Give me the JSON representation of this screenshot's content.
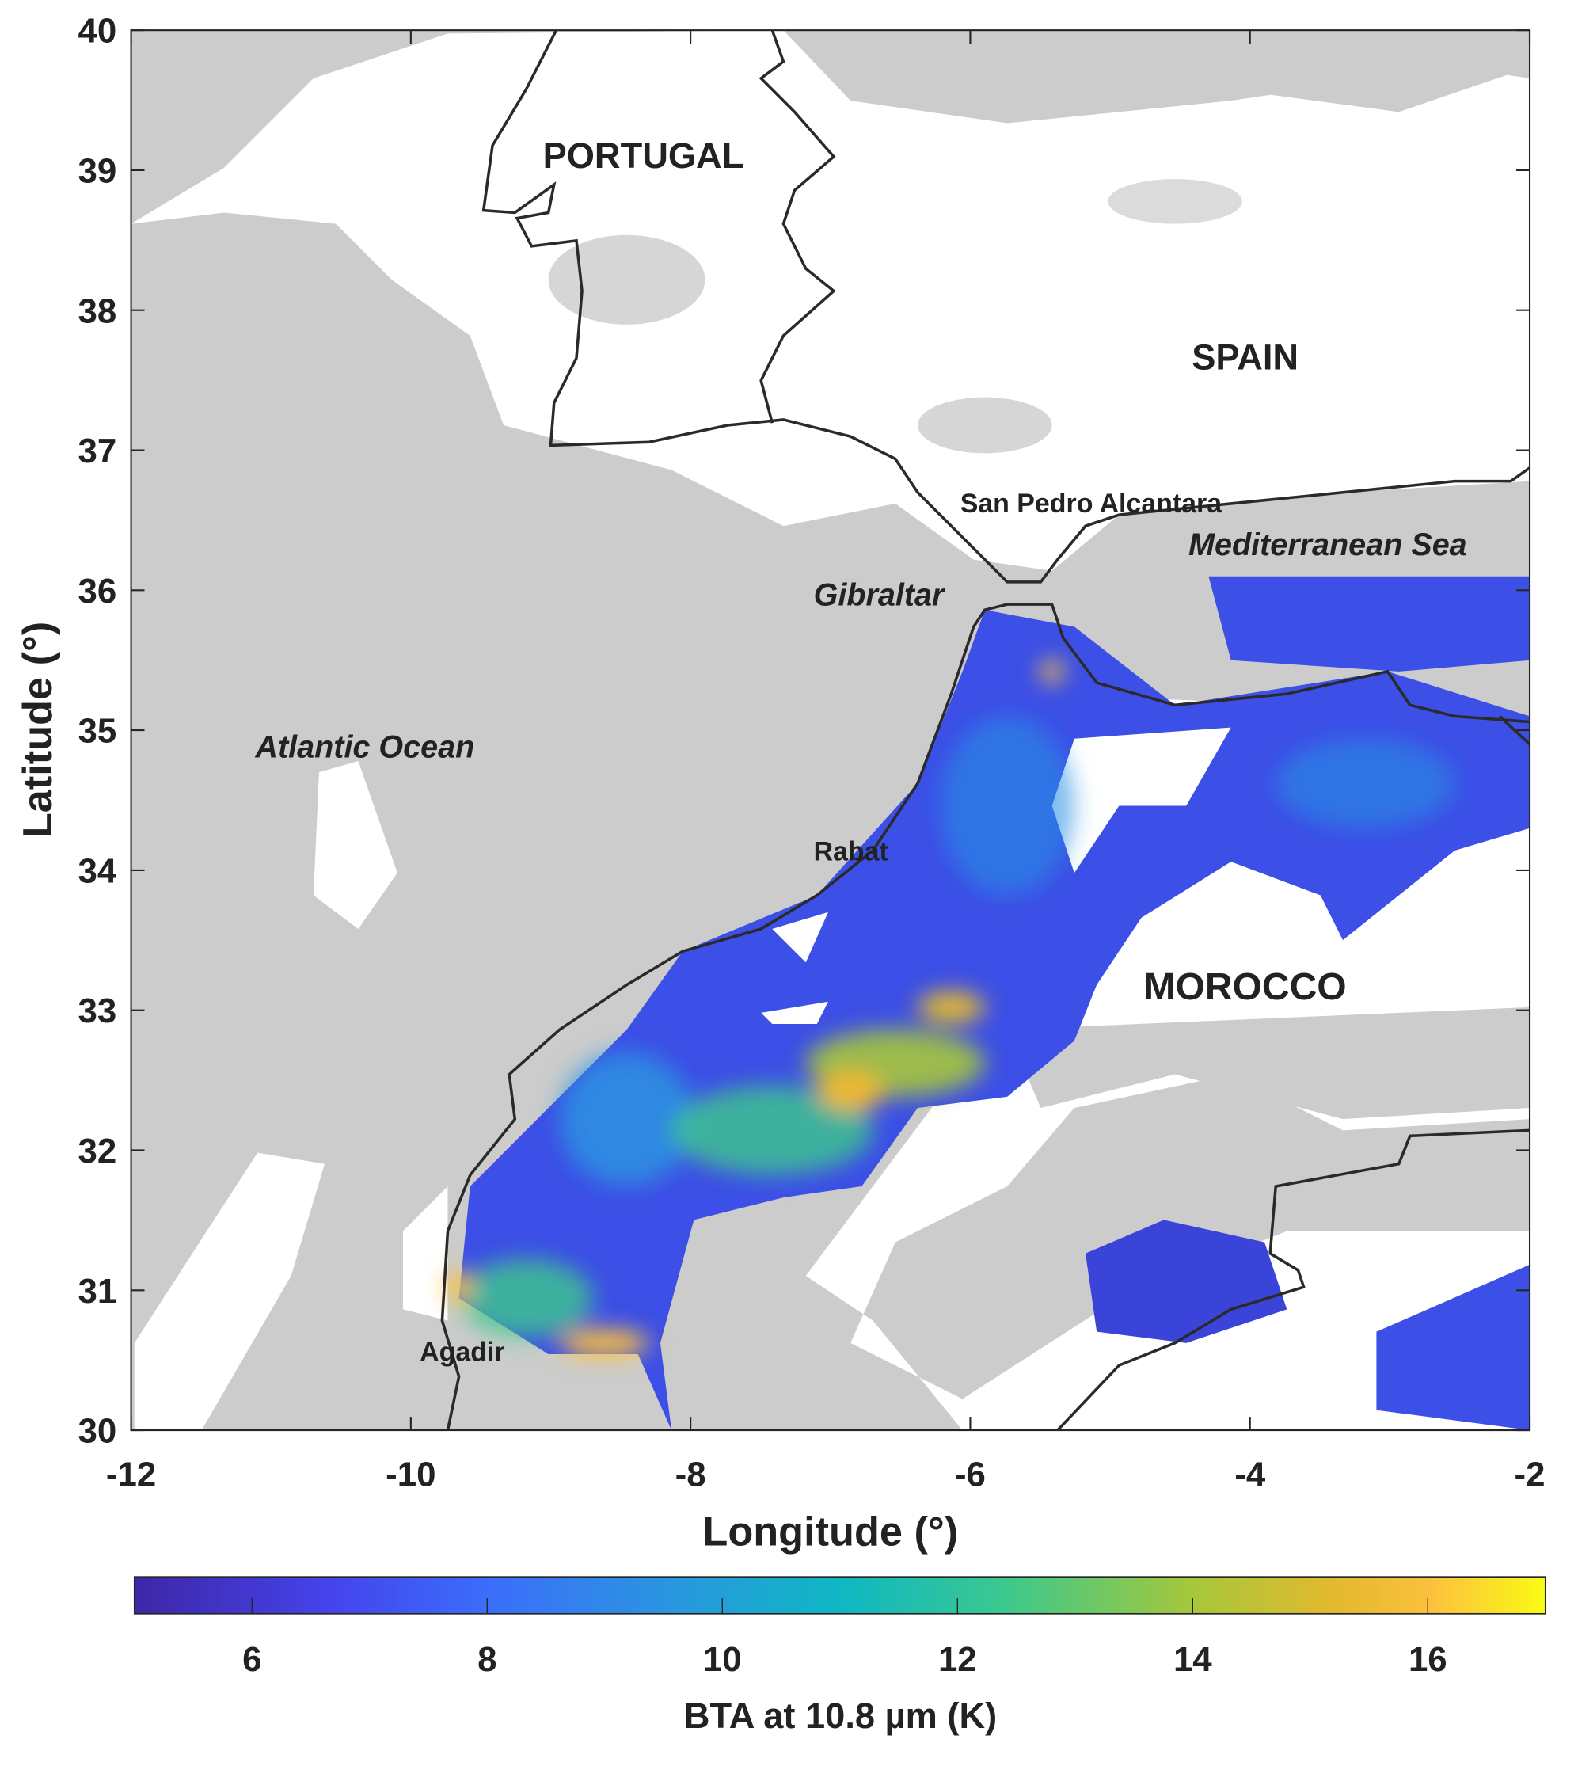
{
  "chart_data": {
    "type": "heatmap",
    "subtype": "geographic map",
    "xlabel": "Longitude (°)",
    "ylabel": "Latitude (°)",
    "xlim": [
      -12,
      -2
    ],
    "ylim": [
      30,
      40
    ],
    "xticks": [
      -12,
      -10,
      -8,
      -6,
      -4,
      -2
    ],
    "yticks": [
      30,
      31,
      32,
      33,
      34,
      35,
      36,
      37,
      38,
      39,
      40
    ],
    "grid": false,
    "colorbar": {
      "label": "BTA at 10.8 µm (K)",
      "colormap": "parula",
      "clim": [
        5,
        17
      ],
      "ticks": [
        6,
        8,
        10,
        12,
        14,
        16
      ],
      "placement": "bottom"
    },
    "no_data_color": "#cccccc",
    "annotations": {
      "portugal": "PORTUGAL",
      "spain": "SPAIN",
      "san_pedro": "San Pedro Alcantara",
      "mediterranean": "Mediterranean Sea",
      "gibraltar": "Gibraltar",
      "atlantic": "Atlantic Ocean",
      "rabat": "Rabat",
      "morocco": "MOROCCO",
      "agadir": "Agadir"
    }
  }
}
